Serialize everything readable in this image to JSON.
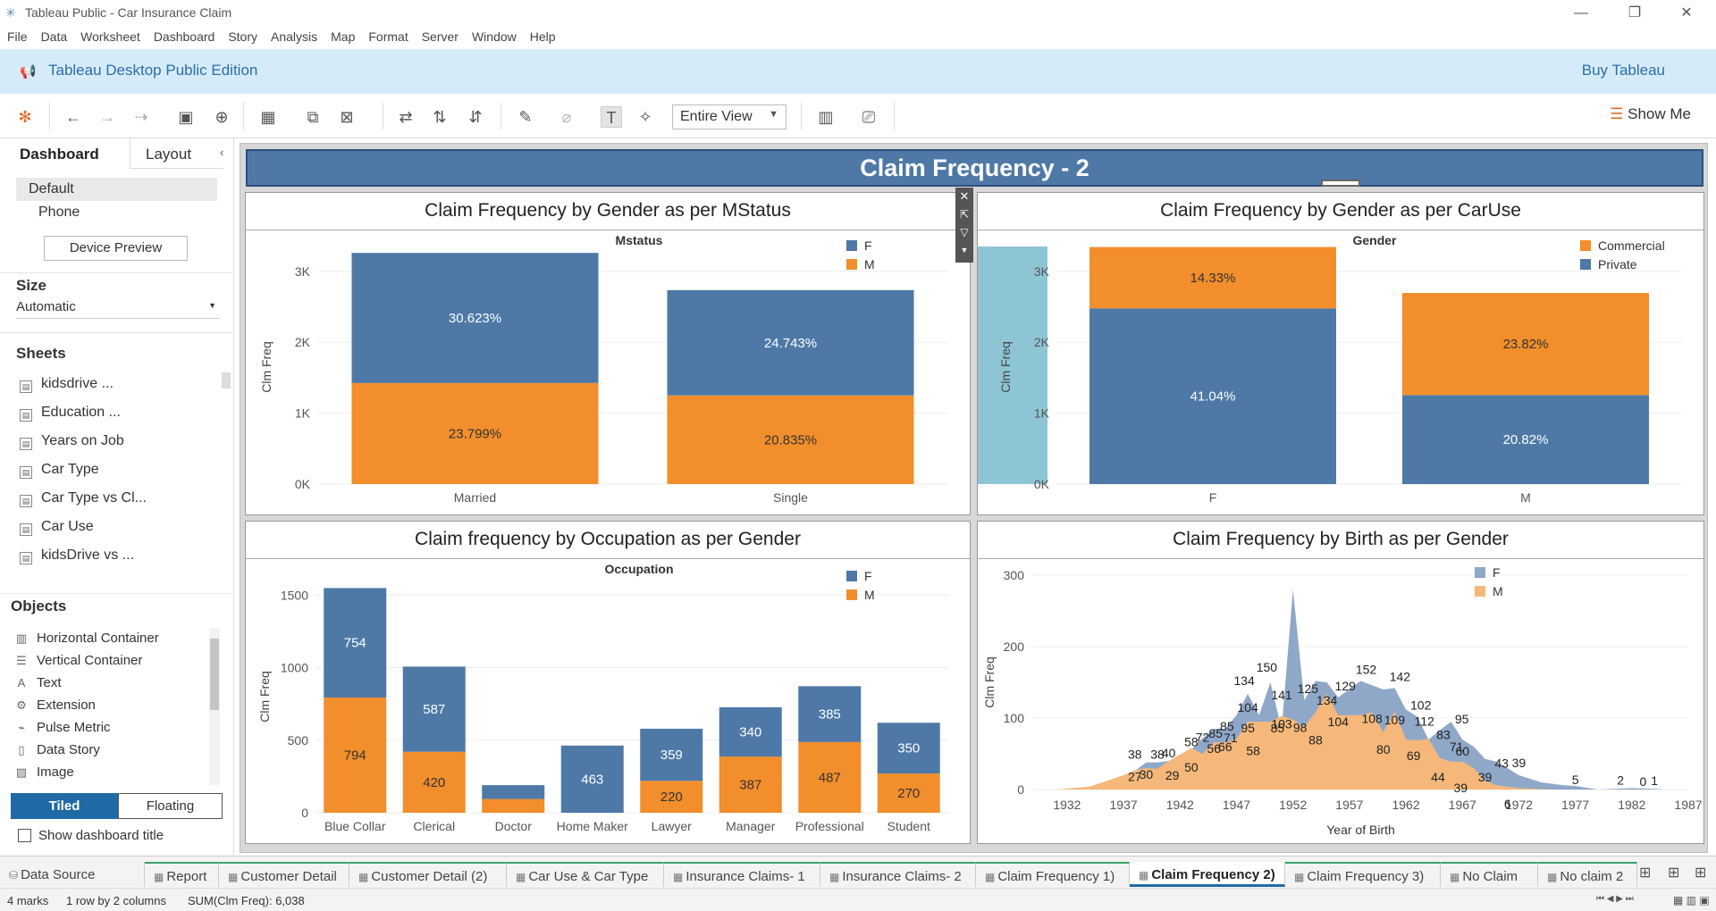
{
  "window": {
    "title": "Tableau Public - Car Insurance Claim"
  },
  "menu": [
    "File",
    "Data",
    "Worksheet",
    "Dashboard",
    "Story",
    "Analysis",
    "Map",
    "Format",
    "Server",
    "Window",
    "Help"
  ],
  "banner": {
    "edition": "Tableau Desktop Public Edition",
    "buy": "Buy Tableau"
  },
  "toolbar": {
    "fit": "Entire View",
    "show_me": "Show Me"
  },
  "left_panel": {
    "tabs": [
      "Dashboard",
      "Layout"
    ],
    "devices": [
      "Default",
      "Phone"
    ],
    "device_preview": "Device Preview",
    "size_label": "Size",
    "size_value": "Automatic",
    "sheets_label": "Sheets",
    "sheets": [
      "kidsdrive ...",
      "Education ...",
      "Years on Job",
      "Car Type",
      "Car Type vs Cl...",
      "Car Use",
      "kidsDrive vs ..."
    ],
    "objects_label": "Objects",
    "objects": [
      "Horizontal Container",
      "Vertical Container",
      "Text",
      "Extension",
      "Pulse Metric",
      "Data Story",
      "Image"
    ],
    "tiled": "Tiled",
    "floating": "Floating",
    "show_title": "Show dashboard title"
  },
  "dashboard": {
    "title": "Claim Frequency - 2"
  },
  "colors": {
    "blue": "#4e79a7",
    "orange": "#f28e2b",
    "light_blue": "#8fa8c8",
    "light_orange": "#f5b87a",
    "accent": "#1f6aa5"
  },
  "chart_data": [
    {
      "type": "bar",
      "title": "Claim Frequency by Gender as per MStatus",
      "header": "Mstatus",
      "ylabel": "Clm Freq",
      "yticks": [
        "0K",
        "1K",
        "2K",
        "3K"
      ],
      "ylim": [
        0,
        3300
      ],
      "categories": [
        "Married",
        "Single"
      ],
      "series": [
        {
          "name": "M",
          "values": [
            1425,
            1250
          ],
          "labels": [
            "23.799%",
            "20.835%"
          ]
        },
        {
          "name": "F",
          "values": [
            1835,
            1485
          ],
          "labels": [
            "30.623%",
            "24.743%"
          ]
        }
      ],
      "legend": "top-right"
    },
    {
      "type": "bar",
      "title": "Claim Frequency by Gender as per CarUse",
      "header": "Gender",
      "ylabel": "Clm Freq",
      "yticks": [
        "0K",
        "1K",
        "2K",
        "3K"
      ],
      "ylim": [
        0,
        3300
      ],
      "categories": [
        "F",
        "M"
      ],
      "series": [
        {
          "name": "Private",
          "values": [
            2478,
            1255
          ],
          "labels": [
            "41.04%",
            "20.82%"
          ]
        },
        {
          "name": "Commercial",
          "values": [
            865,
            1440
          ],
          "labels": [
            "14.33%",
            "23.82%"
          ]
        }
      ],
      "legend": "top-right"
    },
    {
      "type": "bar",
      "title": "Claim frequency by Occupation as per Gender",
      "header": "Occupation",
      "ylabel": "Clm Freq",
      "yticks": [
        "0",
        "500",
        "1000",
        "1500"
      ],
      "ylim": [
        0,
        1600
      ],
      "categories": [
        "Blue Collar",
        "Clerical",
        "Doctor",
        "Home Maker",
        "Lawyer",
        "Manager",
        "Professional",
        "Student"
      ],
      "series": [
        {
          "name": "M",
          "values": [
            794,
            420,
            95,
            0,
            220,
            387,
            487,
            270
          ],
          "labels": [
            "794",
            "420",
            "",
            "",
            "220",
            "387",
            "487",
            "270"
          ]
        },
        {
          "name": "F",
          "values": [
            754,
            587,
            95,
            463,
            359,
            340,
            385,
            350
          ],
          "labels": [
            "754",
            "587",
            "",
            "463",
            "359",
            "340",
            "385",
            "350"
          ]
        }
      ],
      "legend": "top-right"
    },
    {
      "type": "area",
      "title": "Claim Frequency by Birth as per Gender",
      "xlabel": "Year of Birth",
      "ylabel": "Clm Freq",
      "xticks": [
        "1932",
        "1937",
        "1942",
        "1947",
        "1952",
        "1957",
        "1962",
        "1967",
        "1972",
        "1977",
        "1982",
        "1987"
      ],
      "xlim": [
        1929,
        1987
      ],
      "ylim": [
        0,
        300
      ],
      "yticks": [
        "0",
        "100",
        "200",
        "300"
      ],
      "series": [
        {
          "name": "F",
          "points": [
            [
              1931,
              0
            ],
            [
              1934,
              2
            ],
            [
              1937,
              14
            ],
            [
              1939,
              38
            ],
            [
              1940,
              38
            ],
            [
              1941,
              40
            ],
            [
              1943,
              56
            ],
            [
              1944,
              72
            ],
            [
              1945,
              85
            ],
            [
              1946,
              85
            ],
            [
              1947,
              104
            ],
            [
              1948,
              134
            ],
            [
              1949,
              104
            ],
            [
              1950,
              150
            ],
            [
              1951,
              85
            ],
            [
              1952,
              280
            ],
            [
              1953,
              125
            ],
            [
              1954,
              152
            ],
            [
              1955,
              150
            ],
            [
              1956,
              129
            ],
            [
              1958,
              152
            ],
            [
              1960,
              140
            ],
            [
              1961,
              142
            ],
            [
              1962,
              112
            ],
            [
              1963,
              102
            ],
            [
              1964,
              70
            ],
            [
              1965,
              83
            ],
            [
              1966,
              95
            ],
            [
              1967,
              70
            ],
            [
              1968,
              60
            ],
            [
              1969,
              43
            ],
            [
              1970,
              39
            ],
            [
              1971,
              30
            ],
            [
              1972,
              20
            ],
            [
              1974,
              10
            ],
            [
              1976,
              6
            ],
            [
              1977,
              5
            ],
            [
              1979,
              0
            ],
            [
              1982,
              2
            ],
            [
              1984,
              1
            ],
            [
              1985,
              0
            ]
          ]
        },
        {
          "name": "M",
          "points": [
            [
              1931,
              0
            ],
            [
              1934,
              4
            ],
            [
              1937,
              20
            ],
            [
              1938,
              27
            ],
            [
              1939,
              30
            ],
            [
              1940,
              29
            ],
            [
              1941,
              40
            ],
            [
              1943,
              58
            ],
            [
              1944,
              50
            ],
            [
              1945,
              66
            ],
            [
              1946,
              66
            ],
            [
              1947,
              71
            ],
            [
              1948,
              95
            ],
            [
              1949,
              95
            ],
            [
              1950,
              95
            ],
            [
              1951,
              103
            ],
            [
              1952,
              98
            ],
            [
              1953,
              88
            ],
            [
              1954,
              108
            ],
            [
              1955,
              134
            ],
            [
              1956,
              104
            ],
            [
              1958,
              104
            ],
            [
              1959,
              108
            ],
            [
              1960,
              80
            ],
            [
              1961,
              109
            ],
            [
              1962,
              70
            ],
            [
              1963,
              69
            ],
            [
              1964,
              71
            ],
            [
              1965,
              44
            ],
            [
              1966,
              39
            ],
            [
              1967,
              39
            ],
            [
              1968,
              30
            ],
            [
              1969,
              12
            ],
            [
              1970,
              6
            ],
            [
              1972,
              2
            ],
            [
              1975,
              0
            ]
          ]
        }
      ],
      "labels": [
        "150",
        "125",
        "129",
        "134",
        "152",
        "142",
        "102",
        "104",
        "85",
        "85",
        "112",
        "95",
        "56",
        "71",
        "58",
        "141",
        "134",
        "83",
        "40",
        "72",
        "85",
        "95",
        "103",
        "98",
        "104",
        "108",
        "109",
        "38",
        "38",
        "58",
        "66",
        "88",
        "80",
        "60",
        "43",
        "69",
        "71",
        "27",
        "30",
        "29",
        "50",
        "44",
        "39",
        "39",
        "39",
        "6",
        "5",
        "2",
        "0",
        "1"
      ],
      "legend": "top-right"
    }
  ],
  "tabs": [
    "Data Source",
    "Report",
    "Customer Detail",
    "Customer Detail (2)",
    "Car Use & Car Type",
    "Insurance Claims- 1",
    "Insurance Claims- 2",
    "Claim Frequency 1)",
    "Claim Frequency 2)",
    "Claim Frequency 3)",
    "No Claim",
    "No claim 2"
  ],
  "status": {
    "marks": "4 marks",
    "rows": "1 row by 2 columns",
    "sum": "SUM(Clm Freq): 6,038"
  }
}
